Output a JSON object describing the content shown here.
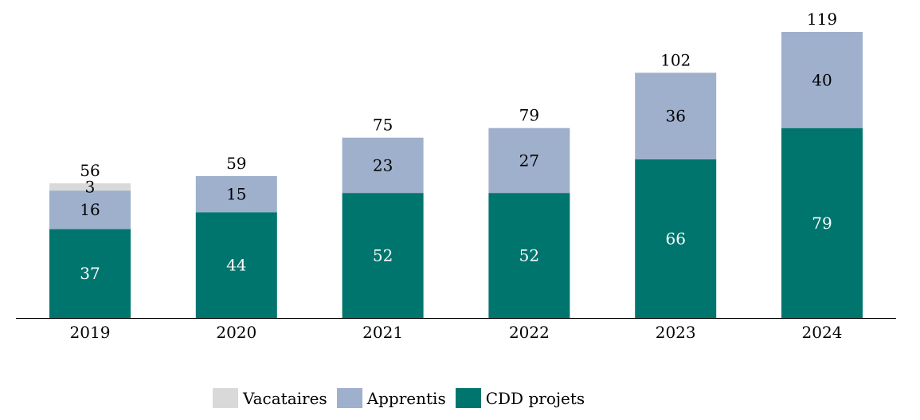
{
  "chart_data": {
    "type": "bar",
    "stacked": true,
    "categories": [
      "2019",
      "2020",
      "2021",
      "2022",
      "2023",
      "2024"
    ],
    "series": [
      {
        "name": "CDD projets",
        "color": "#00756E",
        "label_color": "#ffffff",
        "values": [
          37,
          44,
          52,
          52,
          66,
          79
        ]
      },
      {
        "name": "Apprentis",
        "color": "#9EB0CC",
        "label_color": "#000000",
        "values": [
          16,
          15,
          23,
          27,
          36,
          40
        ]
      },
      {
        "name": "Vacataires",
        "color": "#D9D9D9",
        "label_color": "#000000",
        "values": [
          3,
          null,
          null,
          null,
          null,
          null
        ]
      }
    ],
    "totals": [
      56,
      59,
      75,
      79,
      102,
      119
    ],
    "title": "",
    "xlabel": "",
    "ylabel": "",
    "ylim": [
      0,
      119
    ],
    "grid": false,
    "legend_position": "bottom-center",
    "legend_order": [
      "Vacataires",
      "Apprentis",
      "CDD projets"
    ]
  }
}
